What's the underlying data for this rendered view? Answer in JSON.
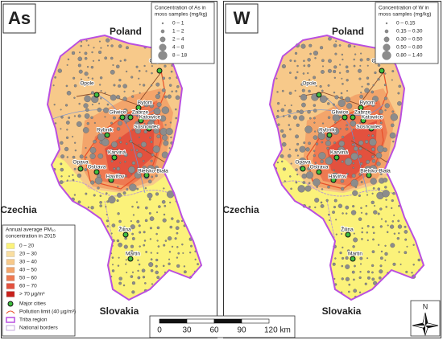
{
  "panels": [
    {
      "label": "As",
      "legend_title_lines": [
        "Concentration of As in",
        "moss samples (mg/kg)"
      ],
      "legend_items": [
        "0 – 1",
        "1 – 2",
        "2 – 4",
        "4 – 8",
        "8 – 18"
      ]
    },
    {
      "label": "W",
      "legend_title_lines": [
        "Concentration of W in",
        "moss samples (mg/kg)"
      ],
      "legend_items": [
        "0 – 0.15",
        "0.15 – 0.30",
        "0.30 – 0.50",
        "0.50 – 0.80",
        "0.80 – 1.40"
      ]
    }
  ],
  "countries": [
    "Poland",
    "Czechia",
    "Slovakia"
  ],
  "cities": [
    "Opole",
    "Częstochowa",
    "Bytom",
    "Gliwice",
    "Zabrze",
    "Katowice",
    "Sosnowiec",
    "Rybnik",
    "Karviná",
    "Opava",
    "Ostrava",
    "Havířov",
    "Bielsko-Biała",
    "Žilina",
    "Martin"
  ],
  "pm_legend": {
    "title_lines": [
      "Annual average PM₁₀",
      "concentration in 2015"
    ],
    "classes": [
      "0 – 20",
      "20 – 30",
      "30 – 40",
      "40 – 50",
      "50 – 60",
      "60 – 70",
      "> 70 µg/m³"
    ],
    "symbols": [
      "Major cities",
      "Pollution limit (40 µg/m³)",
      "Triba region",
      "National borders"
    ]
  },
  "scale_bar": {
    "labels": [
      "0",
      "30",
      "60",
      "90",
      "120 km"
    ]
  },
  "north": "N"
}
